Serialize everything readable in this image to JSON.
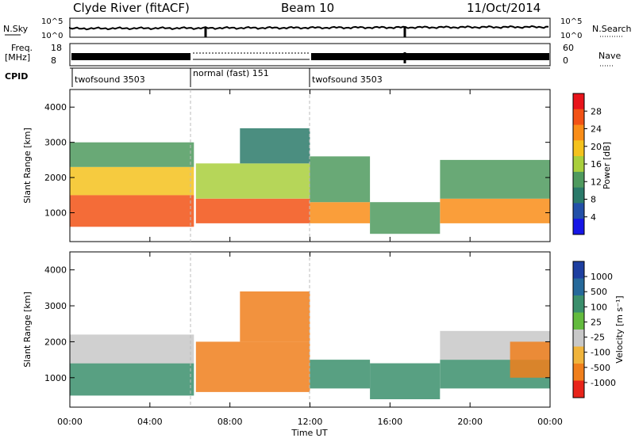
{
  "header": {
    "title": "Clyde River (fitACF)",
    "beam": "Beam 10",
    "date": "11/Oct/2014"
  },
  "top_panels": {
    "nsky_label": "N.Sky",
    "nsky_ticks": [
      "10^5",
      "10^0"
    ],
    "nsearch_label": "N.Search",
    "nsearch_ticks": [
      "10^5",
      "10^0"
    ],
    "freq_label_1": "Freq.",
    "freq_label_2": "[MHz]",
    "freq_ticks": [
      "18",
      "8"
    ],
    "nave_label": "Nave",
    "nave_ticks": [
      "60",
      "0"
    ],
    "cpid_label": "CPID",
    "cpid_segments": [
      {
        "label": "twofsound 3503",
        "start_hour": 0,
        "end_hour": 6
      },
      {
        "label": "normal (fast) 151",
        "start_hour": 6,
        "end_hour": 12
      },
      {
        "label": "twofsound 3503",
        "start_hour": 12,
        "end_hour": 24
      }
    ]
  },
  "power_panel": {
    "ylabel": "Slant Range [km]",
    "colorbar_label": "Power [dB]",
    "colorbar_ticks": [
      "28",
      "24",
      "20",
      "16",
      "12",
      "8",
      "4"
    ],
    "colorbar_colors": [
      "#e8141b",
      "#f25215",
      "#f98d18",
      "#f4c21d",
      "#a9cf3c",
      "#4f9a5e",
      "#2b7a6a",
      "#2350a8",
      "#1616e6"
    ]
  },
  "velocity_panel": {
    "ylabel": "Slant Range [km]",
    "colorbar_label": "Velocity [m s⁻¹]",
    "colorbar_ticks": [
      "1000",
      "500",
      "100",
      "25",
      "-25",
      "-100",
      "-500",
      "-1000"
    ],
    "colorbar_colors": [
      "#1e3fa0",
      "#26699a",
      "#3b8f6c",
      "#63bb3e",
      "#c8c8c8",
      "#f0b43c",
      "#f07f1c",
      "#e8241a"
    ]
  },
  "x_axis": {
    "label": "Time UT",
    "ticks": [
      "00:00",
      "04:00",
      "08:00",
      "12:00",
      "16:00",
      "20:00",
      "00:00"
    ]
  },
  "chart_data": [
    {
      "type": "heatmap",
      "title": "Clyde River (fitACF) Beam 10 11/Oct/2014",
      "quantity": "Power [dB]",
      "xlabel": "Time UT",
      "ylabel": "Slant Range [km]",
      "xlim_hours": [
        0,
        24
      ],
      "ylim_km": [
        180,
        4500
      ],
      "yticks_km": [
        1000,
        2000,
        3000,
        4000
      ],
      "xticks": [
        "00:00",
        "04:00",
        "08:00",
        "12:00",
        "16:00",
        "20:00",
        "00:00"
      ],
      "colorbar_range_db": [
        0,
        32
      ],
      "regions": [
        {
          "start_hour": 0.0,
          "end_hour": 6.2,
          "range_km": [
            600,
            1500
          ],
          "value": 28
        },
        {
          "start_hour": 0.0,
          "end_hour": 6.2,
          "range_km": [
            1500,
            2300
          ],
          "value": 20
        },
        {
          "start_hour": 0.0,
          "end_hour": 6.2,
          "range_km": [
            2300,
            3000
          ],
          "value": 12
        },
        {
          "start_hour": 6.3,
          "end_hour": 12.0,
          "range_km": [
            700,
            1400
          ],
          "value": 26
        },
        {
          "start_hour": 6.3,
          "end_hour": 12.0,
          "range_km": [
            1400,
            2400
          ],
          "value": 16
        },
        {
          "start_hour": 8.5,
          "end_hour": 12.0,
          "range_km": [
            2400,
            3400
          ],
          "value": 10
        },
        {
          "start_hour": 12.0,
          "end_hour": 15.0,
          "range_km": [
            700,
            1300
          ],
          "value": 24
        },
        {
          "start_hour": 12.0,
          "end_hour": 15.0,
          "range_km": [
            1300,
            2600
          ],
          "value": 12
        },
        {
          "start_hour": 15.0,
          "end_hour": 18.5,
          "range_km": [
            400,
            1300
          ],
          "value": 14
        },
        {
          "start_hour": 18.5,
          "end_hour": 24.0,
          "range_km": [
            700,
            1400
          ],
          "value": 22
        },
        {
          "start_hour": 18.5,
          "end_hour": 24.0,
          "range_km": [
            1400,
            2500
          ],
          "value": 12
        }
      ]
    },
    {
      "type": "heatmap",
      "quantity": "Velocity [m s⁻¹]",
      "xlabel": "Time UT",
      "ylabel": "Slant Range [km]",
      "xlim_hours": [
        0,
        24
      ],
      "ylim_km": [
        180,
        4500
      ],
      "yticks_km": [
        1000,
        2000,
        3000,
        4000
      ],
      "xticks": [
        "00:00",
        "04:00",
        "08:00",
        "12:00",
        "16:00",
        "20:00",
        "00:00"
      ],
      "colorbar_levels": [
        1000,
        500,
        100,
        25,
        -25,
        -100,
        -500,
        -1000
      ],
      "regions": [
        {
          "start_hour": 0.0,
          "end_hour": 6.2,
          "range_km": [
            500,
            1400
          ],
          "value": 200
        },
        {
          "start_hour": 0.0,
          "end_hour": 6.2,
          "range_km": [
            1400,
            2200
          ],
          "value": 0
        },
        {
          "start_hour": 6.3,
          "end_hour": 12.0,
          "range_km": [
            600,
            2000
          ],
          "value": -300
        },
        {
          "start_hour": 8.5,
          "end_hour": 12.0,
          "range_km": [
            2000,
            3400
          ],
          "value": -150
        },
        {
          "start_hour": 12.0,
          "end_hour": 15.0,
          "range_km": [
            700,
            1500
          ],
          "value": 150
        },
        {
          "start_hour": 15.0,
          "end_hour": 18.5,
          "range_km": [
            400,
            1400
          ],
          "value": 300
        },
        {
          "start_hour": 18.5,
          "end_hour": 24.0,
          "range_km": [
            700,
            1500
          ],
          "value": 150
        },
        {
          "start_hour": 18.5,
          "end_hour": 24.0,
          "range_km": [
            1500,
            2300
          ],
          "value": 0
        },
        {
          "start_hour": 22.0,
          "end_hour": 24.0,
          "range_km": [
            1000,
            2000
          ],
          "value": -200
        }
      ]
    }
  ]
}
